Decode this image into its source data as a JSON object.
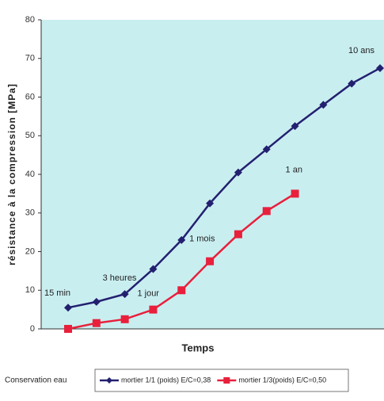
{
  "chart_data": {
    "type": "line",
    "x_label": "Temps",
    "y_label": "résistance à la compression [MPa]",
    "categories": [
      null,
      null,
      null,
      null,
      null,
      null,
      null,
      null,
      null,
      null,
      null,
      null
    ],
    "series": [
      {
        "name": "mortier 1/1 (poids) E/C=0,38",
        "color": "#232070",
        "marker": "diamond",
        "values": [
          5.5,
          7,
          9,
          15.5,
          23,
          32.5,
          40.5,
          46.5,
          52.5,
          58,
          63.5,
          67.5
        ]
      },
      {
        "name": "mortier 1/3(poids) E/C=0,50",
        "color": "#e8203c",
        "marker": "square",
        "values": [
          0,
          1.5,
          2.5,
          5,
          10,
          17.5,
          24.5,
          30.5,
          35,
          null,
          null,
          null
        ]
      }
    ],
    "annotations": [
      "15 min",
      "3 heures",
      "1 jour",
      "1 mois",
      "1 an",
      "10 ans"
    ],
    "legend_title": "Conservation eau",
    "ylim": [
      0,
      80
    ],
    "yticks": [
      0,
      10,
      20,
      30,
      40,
      50,
      60,
      70,
      80
    ],
    "plot_background": "#c9eef0"
  }
}
